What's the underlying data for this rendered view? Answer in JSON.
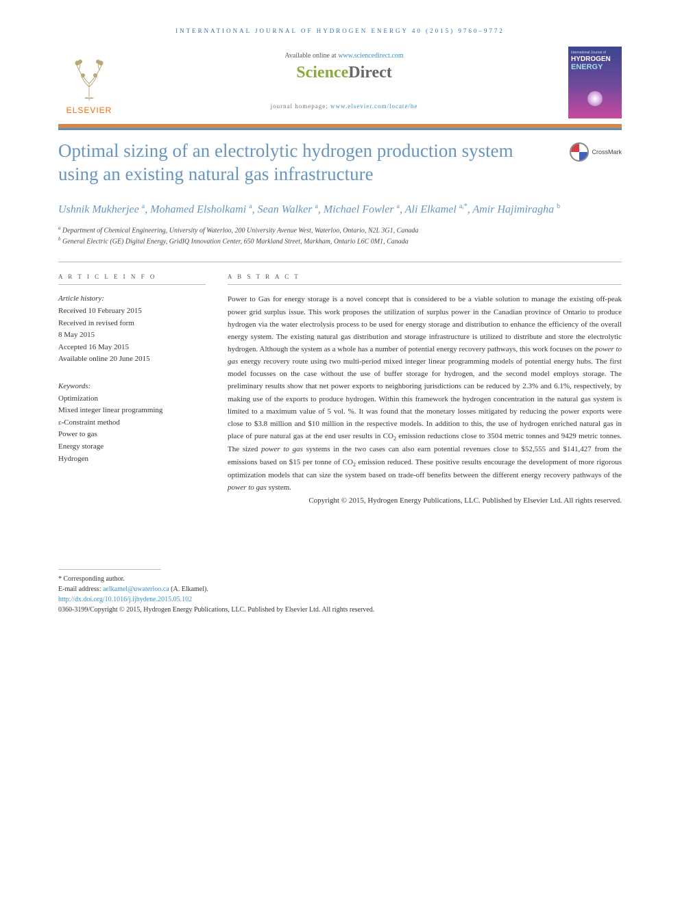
{
  "journal_header": "INTERNATIONAL JOURNAL OF HYDROGEN ENERGY 40 (2015) 9760–9772",
  "available": {
    "prefix": "Available online at ",
    "link": "www.sciencedirect.com"
  },
  "sd_logo": {
    "science": "Science",
    "direct": "Direct"
  },
  "elsevier": "ELSEVIER",
  "journal_homepage": {
    "label": "journal homepage: ",
    "link": "www.elsevier.com/locate/he"
  },
  "cover": {
    "small": "International Journal of",
    "main": "HYDROGEN",
    "sub": "ENERGY"
  },
  "crossmark": "CrossMark",
  "title": "Optimal sizing of an electrolytic hydrogen production system using an existing natural gas infrastructure",
  "authors_html": "Ushnik Mukherjee <sup>a</sup>, Mohamed Elsholkami <sup>a</sup>, Sean Walker <sup>a</sup>, Michael Fowler <sup>a</sup>, Ali Elkamel <sup>a,*</sup>, Amir Hajimiragha <sup>b</sup>",
  "affiliations": {
    "a": "Department of Chemical Engineering, University of Waterloo, 200 University Avenue West, Waterloo, Ontario, N2L 3G1, Canada",
    "b": "General Electric (GE) Digital Energy, GridIQ Innovation Center, 650 Markland Street, Markham, Ontario L6C 0M1, Canada"
  },
  "article_info": {
    "header": "A R T I C L E   I N F O",
    "history_label": "Article history:",
    "received": "Received 10 February 2015",
    "revised1": "Received in revised form",
    "revised2": "8 May 2015",
    "accepted": "Accepted 16 May 2015",
    "online": "Available online 20 June 2015",
    "keywords_label": "Keywords:",
    "keywords": [
      "Optimization",
      "Mixed integer linear programming",
      "ε-Constraint method",
      "Power to gas",
      "Energy storage",
      "Hydrogen"
    ]
  },
  "abstract": {
    "header": "A B S T R A C T",
    "text": "Power to Gas for energy storage is a novel concept that is considered to be a viable solution to manage the existing off-peak power grid surplus issue. This work proposes the utilization of surplus power in the Canadian province of Ontario to produce hydrogen via the water electrolysis process to be used for energy storage and distribution to enhance the efficiency of the overall energy system. The existing natural gas distribution and storage infrastructure is utilized to distribute and store the electrolytic hydrogen. Although the system as a whole has a number of potential energy recovery pathways, this work focuses on the power to gas energy recovery route using two multi-period mixed integer linear programming models of potential energy hubs. The first model focusses on the case without the use of buffer storage for hydrogen, and the second model employs storage. The preliminary results show that net power exports to neighboring jurisdictions can be reduced by 2.3% and 6.1%, respectively, by making use of the exports to produce hydrogen. Within this framework the hydrogen concentration in the natural gas system is limited to a maximum value of 5 vol. %. It was found that the monetary losses mitigated by reducing the power exports were close to $3.8 million and $10 million in the respective models. In addition to this, the use of hydrogen enriched natural gas in place of pure natural gas at the end user results in CO₂ emission reductions close to 3504 metric tonnes and 9429 metric tonnes. The sized power to gas systems in the two cases can also earn potential revenues close to $52,555 and $141,427 from the emissions based on $15 per tonne of CO₂ emission reduced. These positive results encourage the development of more rigorous optimization models that can size the system based on trade-off benefits between the different energy recovery pathways of the power to gas system.",
    "copyright": "Copyright © 2015, Hydrogen Energy Publications, LLC. Published by Elsevier Ltd. All rights reserved."
  },
  "footer": {
    "corresponding": "* Corresponding author.",
    "email_label": "E-mail address: ",
    "email": "aelkamel@uwaterloo.ca",
    "email_suffix": " (A. Elkamel).",
    "doi": "http://dx.doi.org/10.1016/j.ijhydene.2015.05.102",
    "issn": "0360-3199/Copyright © 2015, Hydrogen Energy Publications, LLC. Published by Elsevier Ltd. All rights reserved."
  }
}
